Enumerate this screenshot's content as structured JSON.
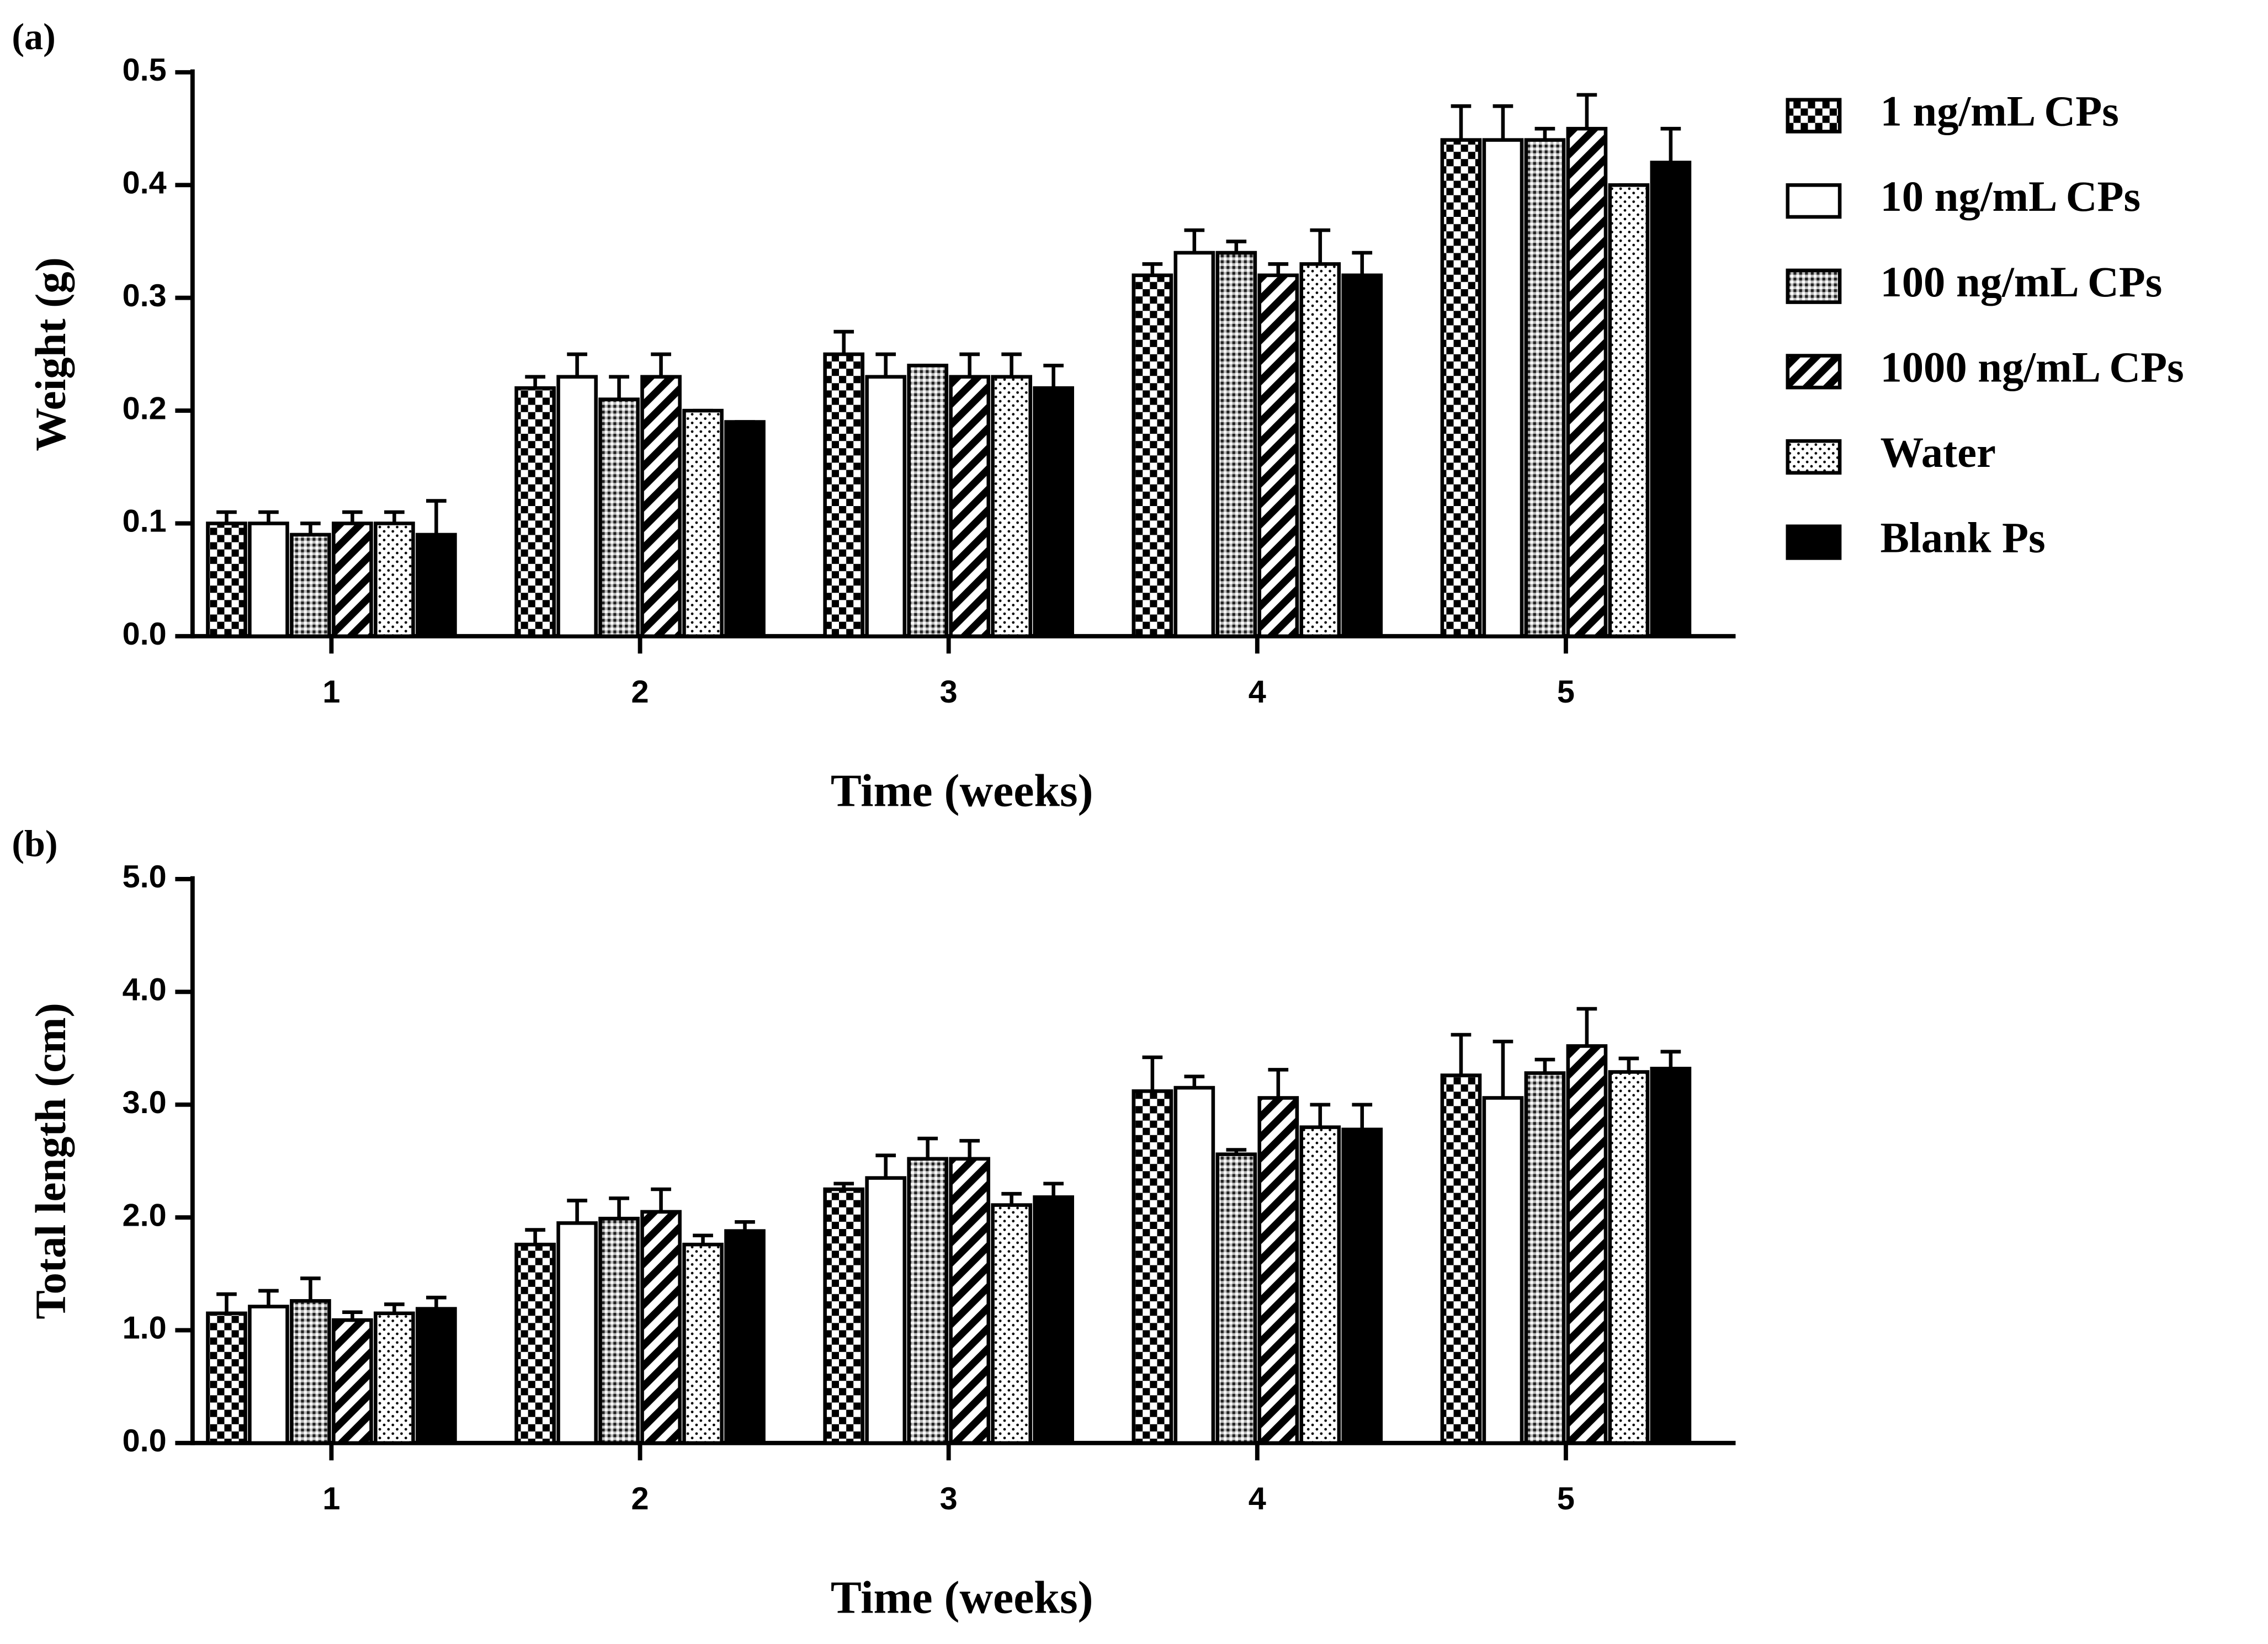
{
  "chart_data": [
    {
      "type": "bar",
      "panel_label": "(a)",
      "y_label": "Weight (g)",
      "x_label": "Time (weeks)",
      "categories": [
        "1",
        "2",
        "3",
        "4",
        "5"
      ],
      "ylim": [
        0,
        0.5
      ],
      "yticks": [
        {
          "value": 0,
          "label": "0.0"
        },
        0.1,
        0.2,
        0.3,
        0.4,
        0.5
      ],
      "legend": "right",
      "series": [
        {
          "name": "1 ng/mL CPs",
          "pattern": "checker",
          "values": [
            0.1,
            0.22,
            0.25,
            0.32,
            0.44
          ],
          "errors": [
            0.01,
            0.01,
            0.02,
            0.01,
            0.03
          ]
        },
        {
          "name": "10 ng/mL CPs",
          "pattern": "white",
          "values": [
            0.1,
            0.23,
            0.23,
            0.34,
            0.44
          ],
          "errors": [
            0.01,
            0.02,
            0.02,
            0.02,
            0.03
          ]
        },
        {
          "name": "100 ng/mL CPs",
          "pattern": "dense-dots",
          "values": [
            0.09,
            0.21,
            0.24,
            0.34,
            0.44
          ],
          "errors": [
            0.01,
            0.02,
            0,
            0.01,
            0.01
          ]
        },
        {
          "name": "1000 ng/mL CPs",
          "pattern": "stripes",
          "values": [
            0.1,
            0.23,
            0.23,
            0.32,
            0.45
          ],
          "errors": [
            0.01,
            0.02,
            0.02,
            0.01,
            0.03
          ]
        },
        {
          "name": "Water",
          "pattern": "sparse-dots",
          "values": [
            0.1,
            0.2,
            0.23,
            0.33,
            0.4
          ],
          "errors": [
            0.01,
            0,
            0.02,
            0.03,
            0
          ]
        },
        {
          "name": "Blank Ps",
          "pattern": "black",
          "values": [
            0.09,
            0.19,
            0.22,
            0.32,
            0.42
          ],
          "errors": [
            0.03,
            0,
            0.02,
            0.02,
            0.03
          ]
        }
      ]
    },
    {
      "type": "bar",
      "panel_label": "(b)",
      "y_label": "Total length (cm)",
      "x_label": "Time (weeks)",
      "categories": [
        "1",
        "2",
        "3",
        "4",
        "5"
      ],
      "ylim": [
        0,
        5
      ],
      "yticks": [
        {
          "value": 0,
          "label": "0.0"
        },
        {
          "value": 1,
          "label": "1.0"
        },
        {
          "value": 2,
          "label": "2.0"
        },
        {
          "value": 3,
          "label": "3.0"
        },
        {
          "value": 4,
          "label": "4.0"
        },
        {
          "value": 5,
          "label": "5.0"
        }
      ],
      "series": [
        {
          "pattern": "checker",
          "values": [
            1.15,
            1.76,
            2.25,
            3.12,
            3.26
          ],
          "errors": [
            0.17,
            0.13,
            0.05,
            0.3,
            0.36
          ]
        },
        {
          "pattern": "white",
          "values": [
            1.21,
            1.95,
            2.35,
            3.15,
            3.06
          ],
          "errors": [
            0.14,
            0.2,
            0.2,
            0.1,
            0.5
          ]
        },
        {
          "pattern": "dense-dots",
          "values": [
            1.26,
            1.99,
            2.52,
            2.56,
            3.28
          ],
          "errors": [
            0.2,
            0.18,
            0.18,
            0.04,
            0.12
          ]
        },
        {
          "pattern": "stripes",
          "values": [
            1.09,
            2.05,
            2.52,
            3.06,
            3.52
          ],
          "errors": [
            0.07,
            0.2,
            0.16,
            0.25,
            0.33
          ]
        },
        {
          "pattern": "sparse-dots",
          "values": [
            1.15,
            1.76,
            2.11,
            2.8,
            3.29
          ],
          "errors": [
            0.08,
            0.08,
            0.1,
            0.2,
            0.12
          ]
        },
        {
          "pattern": "black",
          "values": [
            1.19,
            1.88,
            2.18,
            2.78,
            3.32
          ],
          "errors": [
            0.1,
            0.08,
            0.12,
            0.22,
            0.15
          ]
        }
      ]
    }
  ]
}
